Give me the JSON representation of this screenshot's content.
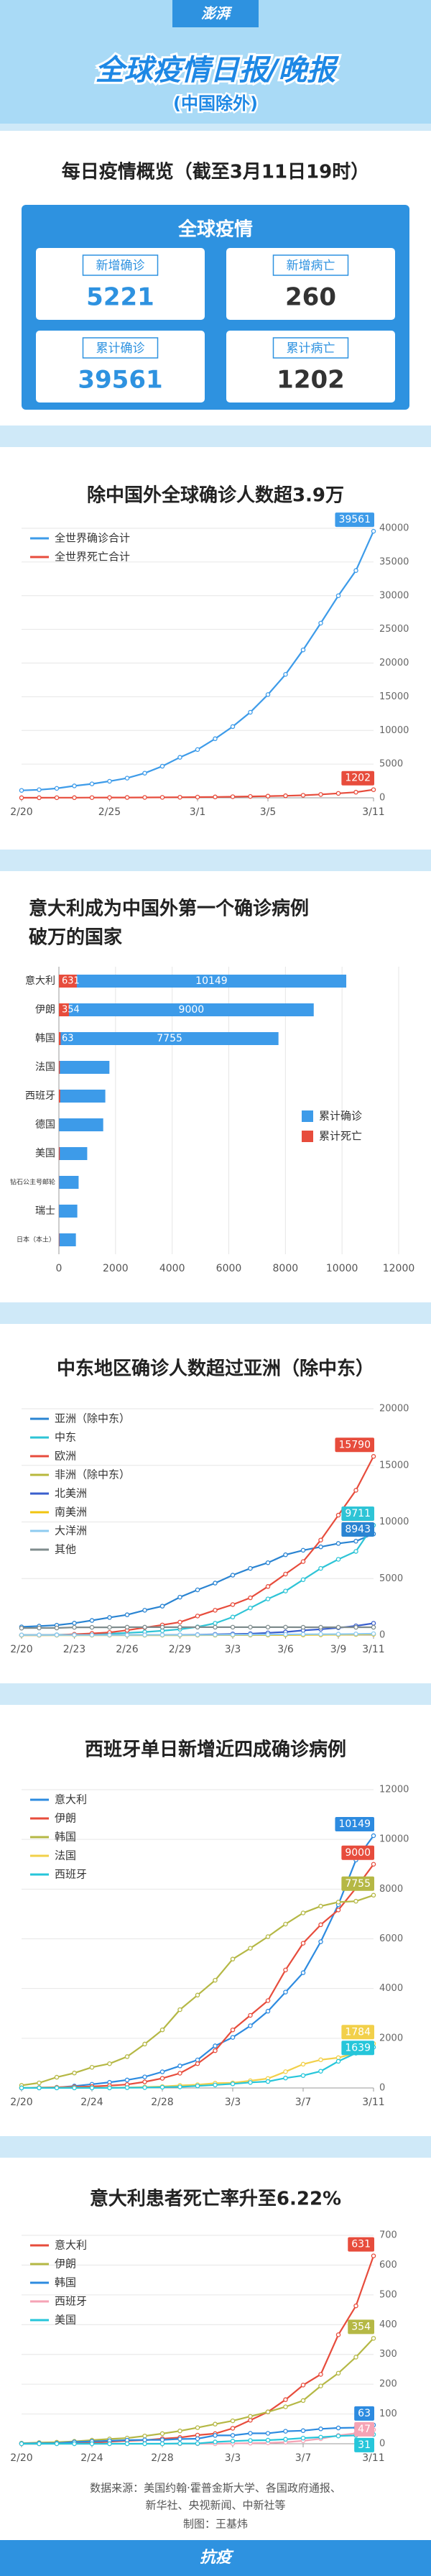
{
  "header": {
    "logo": "澎湃",
    "title": "全球疫情日报/晚报",
    "subtitle": "(中国除外)"
  },
  "overview": {
    "title": "每日疫情概览（截至3月11日19时）",
    "box_title": "全球疫情",
    "cards": [
      {
        "label": "新增确诊",
        "value": 5221
      },
      {
        "label": "新增病亡",
        "value": 260
      },
      {
        "label": "累计确诊",
        "value": 39561
      },
      {
        "label": "累计病亡",
        "value": 1202
      }
    ]
  },
  "chart_data": [
    {
      "type": "line",
      "title": "除中国外全球确诊人数超3.9万",
      "categories": [
        "2/20",
        null,
        null,
        null,
        null,
        "2/25",
        null,
        null,
        null,
        null,
        "3/1",
        null,
        null,
        null,
        "3/5",
        null,
        null,
        null,
        null,
        null,
        "3/11"
      ],
      "series": [
        {
          "name": "全世界确诊合计",
          "color": "#3d9be9",
          "end_label": true,
          "values": [
            1100,
            1200,
            1400,
            1770,
            2070,
            2460,
            2920,
            3660,
            4690,
            6010,
            7160,
            8770,
            10570,
            12700,
            15320,
            18320,
            21950,
            25920,
            29990,
            33730,
            39561
          ]
        },
        {
          "name": "全世界死亡合计",
          "color": "#e74c3c",
          "end_label": true,
          "values": [
            8,
            11,
            16,
            23,
            32,
            38,
            47,
            56,
            67,
            85,
            106,
            127,
            164,
            201,
            249,
            302,
            378,
            496,
            659,
            834,
            1202
          ]
        }
      ],
      "ylim": [
        0,
        40000
      ],
      "yticks": [
        0,
        5000,
        10000,
        15000,
        20000,
        25000,
        30000,
        35000,
        40000
      ],
      "grid": true,
      "legend": "top-left"
    },
    {
      "type": "hbar",
      "title": [
        "意大利成为中国外第一个确诊病例",
        "破万的国家"
      ],
      "categories": [
        "意大利",
        "伊朗",
        "韩国",
        "法国",
        "西班牙",
        "德国",
        "美国",
        "钻石公主号邮轮",
        "瑞士",
        "日本（本土）"
      ],
      "series": [
        {
          "name": "累计确诊",
          "color": "#3d9be9",
          "values": [
            10149,
            9000,
            7755,
            1784,
            1639,
            1565,
            1000,
            696,
            650,
            600
          ]
        },
        {
          "name": "累计死亡",
          "color": "#e74c3c",
          "values": [
            631,
            354,
            63,
            33,
            47,
            3,
            31,
            7,
            4,
            15
          ]
        }
      ],
      "xlim": [
        0,
        12000
      ],
      "xticks": [
        0,
        2000,
        4000,
        6000,
        8000,
        10000,
        12000
      ],
      "grid": true,
      "legend": "right"
    },
    {
      "type": "line",
      "title": "中东地区确诊人数超过亚洲（除中东）",
      "categories": [
        "2/20",
        null,
        null,
        "2/23",
        null,
        null,
        "2/26",
        null,
        null,
        "2/29",
        null,
        null,
        "3/3",
        null,
        null,
        "3/6",
        null,
        null,
        "3/9",
        null,
        "3/11"
      ],
      "series": [
        {
          "name": "亚洲（除中东）",
          "color": "#2a84d2",
          "end_label": true,
          "values": [
            730,
            800,
            880,
            1060,
            1300,
            1560,
            1800,
            2200,
            2560,
            3360,
            4000,
            4600,
            5300,
            5900,
            6400,
            7100,
            7500,
            7800,
            8100,
            8300,
            8943
          ]
        },
        {
          "name": "中东",
          "color": "#2ec4d6",
          "end_label": true,
          "values": [
            4,
            10,
            29,
            45,
            65,
            130,
            200,
            280,
            390,
            520,
            730,
            1050,
            1600,
            2400,
            3200,
            3900,
            4900,
            5900,
            6700,
            7400,
            9711
          ]
        },
        {
          "name": "欧洲",
          "color": "#e74c3c",
          "end_label": true,
          "values": [
            3,
            3,
            9,
            80,
            155,
            240,
            430,
            670,
            900,
            1150,
            1690,
            2200,
            2700,
            3300,
            4300,
            5400,
            6500,
            8400,
            10600,
            12800,
            15790
          ]
        },
        {
          "name": "非洲（除中东）",
          "color": "#b8b83c",
          "end_label": false,
          "values": [
            0,
            0,
            0,
            0,
            0,
            1,
            1,
            1,
            2,
            3,
            5,
            5,
            7,
            10,
            15,
            25,
            35,
            50,
            65,
            80,
            105
          ]
        },
        {
          "name": "北美洲",
          "color": "#3a5fcd",
          "end_label": false,
          "values": [
            15,
            16,
            17,
            18,
            18,
            19,
            20,
            22,
            25,
            30,
            45,
            75,
            105,
            130,
            200,
            280,
            420,
            520,
            650,
            820,
            1050
          ]
        },
        {
          "name": "南美洲",
          "color": "#f1c40f",
          "end_label": false,
          "values": [
            0,
            0,
            0,
            0,
            0,
            0,
            1,
            1,
            2,
            3,
            3,
            4,
            6,
            8,
            10,
            15,
            20,
            30,
            45,
            60,
            80
          ]
        },
        {
          "name": "大洋洲",
          "color": "#8ecbf0",
          "end_label": false,
          "values": [
            15,
            15,
            15,
            15,
            15,
            15,
            15,
            18,
            22,
            26,
            28,
            32,
            35,
            45,
            55,
            65,
            75,
            82,
            92,
            110,
            130
          ]
        },
        {
          "name": "其他",
          "color": "#7f8c8d",
          "end_label": false,
          "values": [
            621,
            634,
            634,
            691,
            691,
            691,
            705,
            705,
            705,
            705,
            705,
            705,
            706,
            706,
            706,
            706,
            696,
            696,
            696,
            696,
            696
          ]
        }
      ],
      "ylim": [
        0,
        20000
      ],
      "yticks": [
        0,
        5000,
        10000,
        15000,
        20000
      ],
      "grid": true,
      "legend": "top-left"
    },
    {
      "type": "line",
      "title": "西班牙单日新增近四成确诊病例",
      "categories": [
        "2/20",
        null,
        null,
        null,
        "2/24",
        null,
        null,
        null,
        "2/28",
        null,
        null,
        null,
        "3/3",
        null,
        null,
        null,
        "3/7",
        null,
        null,
        null,
        "3/11"
      ],
      "series": [
        {
          "name": "意大利",
          "color": "#2d8be0",
          "end_label": true,
          "values": [
            3,
            3,
            20,
            79,
            150,
            227,
            320,
            445,
            650,
            888,
            1128,
            1694,
            2036,
            2502,
            3089,
            3858,
            4636,
            5883,
            7375,
            9172,
            10149
          ]
        },
        {
          "name": "伊朗",
          "color": "#e74c3c",
          "end_label": true,
          "values": [
            5,
            18,
            28,
            43,
            61,
            95,
            139,
            245,
            388,
            593,
            978,
            1501,
            2336,
            2922,
            3513,
            4747,
            5823,
            6566,
            7161,
            8042,
            9000
          ]
        },
        {
          "name": "韩国",
          "color": "#b5b845",
          "end_label": true,
          "values": [
            104,
            204,
            433,
            602,
            833,
            977,
            1261,
            1766,
            2337,
            3150,
            3736,
            4335,
            5186,
            5621,
            6088,
            6593,
            7041,
            7314,
            7478,
            7513,
            7755
          ]
        },
        {
          "name": "法国",
          "color": "#f2d04a",
          "end_label": true,
          "values": [
            12,
            12,
            12,
            12,
            12,
            12,
            18,
            38,
            57,
            100,
            130,
            191,
            204,
            288,
            380,
            656,
            957,
            1134,
            1217,
            1409,
            1784
          ]
        },
        {
          "name": "西班牙",
          "color": "#26c6da",
          "end_label": true,
          "values": [
            2,
            2,
            2,
            2,
            2,
            2,
            13,
            15,
            32,
            45,
            84,
            120,
            165,
            222,
            259,
            400,
            500,
            673,
            1073,
            1400,
            1639
          ]
        }
      ],
      "ylim": [
        0,
        12000
      ],
      "yticks": [
        0,
        2000,
        4000,
        6000,
        8000,
        10000,
        12000
      ],
      "grid": true,
      "legend": "top-left"
    },
    {
      "type": "line",
      "title": "意大利患者死亡率升至6.22%",
      "categories": [
        "2/20",
        null,
        null,
        null,
        "2/24",
        null,
        null,
        null,
        "2/28",
        null,
        null,
        null,
        "3/3",
        null,
        null,
        null,
        "3/7",
        null,
        null,
        null,
        "3/11"
      ],
      "series": [
        {
          "name": "意大利",
          "color": "#e74c3c",
          "end_label": true,
          "values": [
            0,
            0,
            1,
            2,
            3,
            7,
            10,
            12,
            17,
            21,
            29,
            34,
            52,
            79,
            107,
            148,
            197,
            233,
            366,
            463,
            631
          ]
        },
        {
          "name": "伊朗",
          "color": "#b5b845",
          "end_label": true,
          "values": [
            2,
            4,
            5,
            8,
            12,
            16,
            19,
            26,
            34,
            43,
            54,
            66,
            77,
            92,
            107,
            124,
            145,
            194,
            237,
            291,
            354
          ]
        },
        {
          "name": "韩国",
          "color": "#2d8be0",
          "end_label": true,
          "values": [
            1,
            2,
            2,
            6,
            8,
            10,
            12,
            13,
            13,
            16,
            17,
            28,
            28,
            35,
            35,
            42,
            44,
            50,
            53,
            54,
            63
          ]
        },
        {
          "name": "西班牙",
          "color": "#f5a3b5",
          "end_label": true,
          "values": [
            0,
            0,
            0,
            0,
            0,
            0,
            0,
            0,
            0,
            0,
            0,
            0,
            1,
            2,
            3,
            5,
            10,
            17,
            28,
            35,
            47
          ]
        },
        {
          "name": "美国",
          "color": "#26c6da",
          "end_label": true,
          "values": [
            0,
            0,
            0,
            0,
            0,
            0,
            0,
            0,
            0,
            1,
            1,
            6,
            9,
            11,
            12,
            15,
            19,
            22,
            26,
            28,
            31
          ]
        }
      ],
      "ylim": [
        0,
        700
      ],
      "yticks": [
        0,
        100,
        200,
        300,
        400,
        500,
        600,
        700
      ],
      "grid": true,
      "legend": "top-left"
    }
  ],
  "footer": {
    "source": [
      "数据来源：美国约翰·霍普金斯大学、各国政府通报、",
      "新华社、央视新闻、中新社等"
    ],
    "credit": "制图：王基炜",
    "band": "抗疫"
  }
}
